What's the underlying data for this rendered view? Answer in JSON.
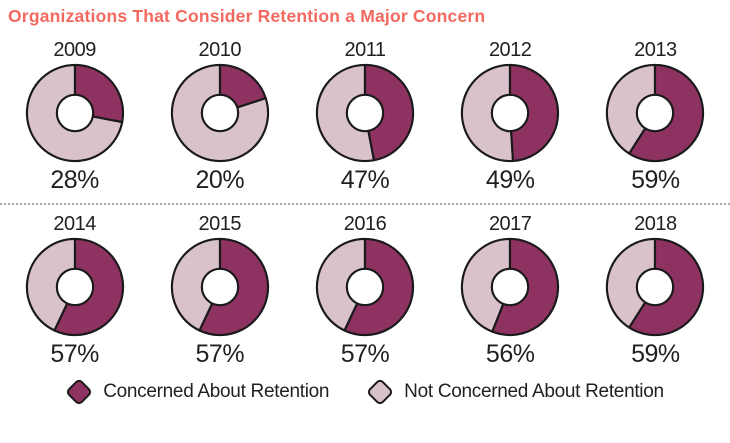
{
  "header": {
    "title": "Organizations That Consider Retention a Major Concern",
    "title_color": "#f4695f"
  },
  "chart_data": {
    "type": "pie",
    "variant": "donut-multiples-grid",
    "title": "Organizations That Consider Retention a Major Concern",
    "categories": [
      "2009",
      "2010",
      "2011",
      "2012",
      "2013",
      "2014",
      "2015",
      "2016",
      "2017",
      "2018"
    ],
    "values": [
      28,
      20,
      47,
      49,
      59,
      57,
      57,
      57,
      56,
      59
    ],
    "unit": "%",
    "charts_per_row": 5,
    "slice_start": "12 o'clock, clockwise",
    "legend": [
      {
        "label": "Concerned About Retention",
        "color": "#8d3261"
      },
      {
        "label": "Not Concerned About Retention",
        "color": "#d9c2cb"
      }
    ],
    "outline_color": "#1a1a1a",
    "hole_color": "#ffffff",
    "legend_position": "bottom-center",
    "grid": "off"
  },
  "divider": {
    "style": "dotted",
    "color": "#a8a8a8"
  }
}
